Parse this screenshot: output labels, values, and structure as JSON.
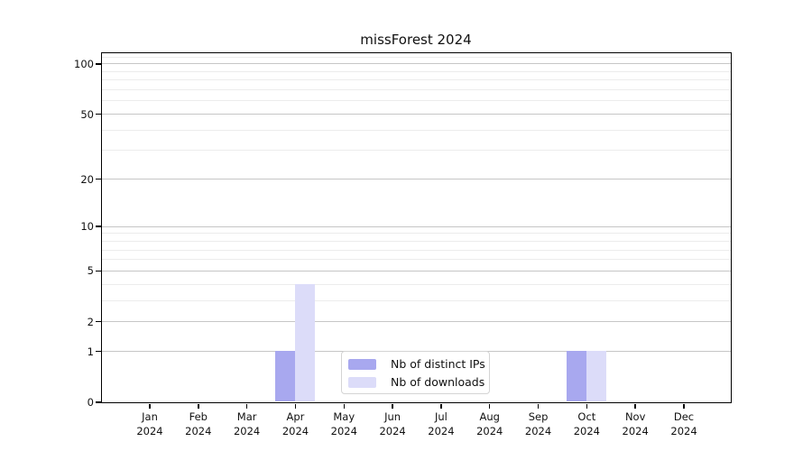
{
  "chart_data": {
    "type": "bar",
    "title": "missForest 2024",
    "categories": [
      "Jan 2024",
      "Feb 2024",
      "Mar 2024",
      "Apr 2024",
      "May 2024",
      "Jun 2024",
      "Jul 2024",
      "Aug 2024",
      "Sep 2024",
      "Oct 2024",
      "Nov 2024",
      "Dec 2024"
    ],
    "series": [
      {
        "name": "Nb of distinct IPs",
        "color": "#a8a8ef",
        "values": [
          0,
          0,
          0,
          1,
          0,
          0,
          0,
          0,
          0,
          1,
          0,
          0
        ]
      },
      {
        "name": "Nb of downloads",
        "color": "#dcdcf9",
        "values": [
          0,
          0,
          0,
          4,
          0,
          0,
          0,
          0,
          0,
          1,
          0,
          0
        ]
      }
    ],
    "xlabel": "",
    "ylabel": "",
    "yscale": "log1p",
    "ylim": [
      0,
      116
    ],
    "y_major_ticks": [
      0,
      1,
      2,
      5,
      10,
      20,
      50,
      100
    ],
    "y_minor_ticks": [
      3,
      4,
      6,
      7,
      8,
      9,
      30,
      40,
      60,
      70,
      80,
      90,
      110
    ],
    "grid": "on",
    "legend_position": "bottom-center",
    "legend_entries": [
      "Nb of distinct IPs",
      "Nb of downloads"
    ]
  },
  "colors": {
    "bar_distinct_ips": "#a8a8ef",
    "bar_downloads": "#dcdcf9",
    "grid_major": "#c6c6c6",
    "grid_minor": "#ececec",
    "spine": "#000000",
    "legend_border": "#d4d4d4",
    "background": "#ffffff"
  }
}
